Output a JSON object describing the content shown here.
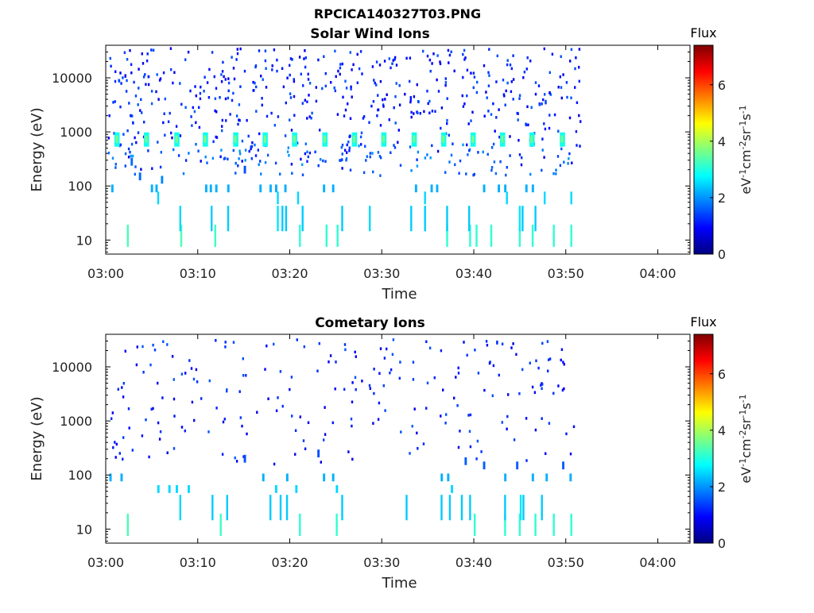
{
  "figure": {
    "title": "RPCICA140327T03.PNG"
  },
  "colors": {
    "colormap": [
      "#00007f",
      "#0000ff",
      "#007fff",
      "#00ffff",
      "#7fff7f",
      "#ffff00",
      "#ff7f00",
      "#ff0000",
      "#7f0000"
    ]
  },
  "chart_data": [
    {
      "type": "heatmap",
      "title": "Solar Wind Ions",
      "xlabel": "Time",
      "ylabel": "Energy (eV)",
      "x_ticks": [
        "03:00",
        "03:10",
        "03:20",
        "03:30",
        "03:40",
        "03:50",
        "04:00"
      ],
      "x_tick_minutes": [
        0,
        10,
        20,
        30,
        40,
        50,
        60
      ],
      "xlim_minutes": [
        0,
        63.5
      ],
      "y_scale": "log",
      "y_ticks": [
        "10",
        "100",
        "1000",
        "10000"
      ],
      "y_tick_values": [
        10,
        100,
        1000,
        10000
      ],
      "ylim": [
        5.5,
        40000
      ],
      "grid": false,
      "colorbar": {
        "title": "Flux",
        "label": "eV-1cm-2sr-1s-1",
        "label_parts": [
          [
            "eV",
            ""
          ],
          [
            "-1",
            "sup"
          ],
          [
            "cm",
            ""
          ],
          [
            "-2",
            "sup"
          ],
          [
            "sr",
            ""
          ],
          [
            "-1",
            "sup"
          ],
          [
            "s",
            ""
          ],
          [
            "-1",
            "sup"
          ]
        ],
        "ticks": [
          "0",
          "2",
          "4",
          "6"
        ],
        "tick_values": [
          0,
          2,
          4,
          6
        ],
        "range": [
          0,
          7.4
        ]
      },
      "bands": [
        {
          "minute": 1.2,
          "energy": 700,
          "flux": 2.9
        },
        {
          "minute": 4.4,
          "energy": 700,
          "flux": 2.9
        },
        {
          "minute": 7.7,
          "energy": 700,
          "flux": 2.9
        },
        {
          "minute": 10.8,
          "energy": 700,
          "flux": 2.9
        },
        {
          "minute": 14.1,
          "energy": 700,
          "flux": 2.9
        },
        {
          "minute": 17.3,
          "energy": 700,
          "flux": 2.9
        },
        {
          "minute": 20.5,
          "energy": 700,
          "flux": 2.9
        },
        {
          "minute": 23.8,
          "energy": 700,
          "flux": 2.9
        },
        {
          "minute": 27.0,
          "energy": 700,
          "flux": 2.9
        },
        {
          "minute": 30.2,
          "energy": 700,
          "flux": 2.9
        },
        {
          "minute": 33.5,
          "energy": 700,
          "flux": 2.9
        },
        {
          "minute": 36.7,
          "energy": 700,
          "flux": 2.9
        },
        {
          "minute": 39.9,
          "energy": 700,
          "flux": 2.9
        },
        {
          "minute": 43.1,
          "energy": 700,
          "flux": 2.9
        },
        {
          "minute": 46.3,
          "energy": 700,
          "flux": 2.9
        },
        {
          "minute": 49.6,
          "energy": 700,
          "flux": 2.9
        }
      ],
      "streaks": [
        {
          "minute": 2.3,
          "energy": 12,
          "flux": 3.3
        },
        {
          "minute": 8.1,
          "energy": 12,
          "flux": 3.3
        },
        {
          "minute": 11.8,
          "energy": 12,
          "flux": 3.2
        },
        {
          "minute": 21.0,
          "energy": 12,
          "flux": 3.1
        },
        {
          "minute": 23.9,
          "energy": 12,
          "flux": 3.1
        },
        {
          "minute": 25.1,
          "energy": 12,
          "flux": 3.1
        },
        {
          "minute": 37.0,
          "energy": 12,
          "flux": 3.1
        },
        {
          "minute": 39.5,
          "energy": 12,
          "flux": 3.1
        },
        {
          "minute": 40.2,
          "energy": 12,
          "flux": 3.1
        },
        {
          "minute": 41.8,
          "energy": 12,
          "flux": 3.1
        },
        {
          "minute": 44.9,
          "energy": 12,
          "flux": 3.1
        },
        {
          "minute": 46.3,
          "energy": 12,
          "flux": 3.1
        },
        {
          "minute": 48.6,
          "energy": 12,
          "flux": 3.1
        },
        {
          "minute": 50.5,
          "energy": 12,
          "flux": 3.1
        },
        {
          "minute": 8.0,
          "energy": 25,
          "flux": 2.5
        },
        {
          "minute": 11.4,
          "energy": 25,
          "flux": 2.4
        },
        {
          "minute": 13.2,
          "energy": 25,
          "flux": 2.4
        },
        {
          "minute": 18.6,
          "energy": 25,
          "flux": 2.6
        },
        {
          "minute": 19.1,
          "energy": 25,
          "flux": 2.4
        },
        {
          "minute": 19.5,
          "energy": 25,
          "flux": 2.4
        },
        {
          "minute": 21.3,
          "energy": 25,
          "flux": 2.4
        },
        {
          "minute": 25.6,
          "energy": 25,
          "flux": 2.4
        },
        {
          "minute": 28.6,
          "energy": 25,
          "flux": 2.5
        },
        {
          "minute": 33.1,
          "energy": 25,
          "flux": 2.4
        },
        {
          "minute": 34.6,
          "energy": 25,
          "flux": 2.4
        },
        {
          "minute": 37.0,
          "energy": 25,
          "flux": 2.4
        },
        {
          "minute": 39.4,
          "energy": 25,
          "flux": 2.4
        },
        {
          "minute": 44.9,
          "energy": 25,
          "flux": 2.6
        },
        {
          "minute": 45.2,
          "energy": 25,
          "flux": 2.4
        },
        {
          "minute": 46.6,
          "energy": 25,
          "flux": 2.4
        },
        {
          "minute": 5.6,
          "energy": 60,
          "flux": 2.5
        },
        {
          "minute": 18.6,
          "energy": 60,
          "flux": 2.5
        },
        {
          "minute": 20.8,
          "energy": 60,
          "flux": 2.5
        },
        {
          "minute": 34.6,
          "energy": 60,
          "flux": 2.5
        },
        {
          "minute": 43.5,
          "energy": 60,
          "flux": 2.5
        },
        {
          "minute": 47.6,
          "energy": 60,
          "flux": 2.5
        },
        {
          "minute": 50.5,
          "energy": 60,
          "flux": 2.5
        }
      ],
      "cells": [
        {
          "minute": 0.6,
          "energy": 90,
          "flux": 2.2
        },
        {
          "minute": 2.7,
          "energy": 280,
          "flux": 1.7
        },
        {
          "minute": 3.6,
          "energy": 150,
          "flux": 1.7
        },
        {
          "minute": 4.9,
          "energy": 90,
          "flux": 2.2
        },
        {
          "minute": 5.4,
          "energy": 90,
          "flux": 2.2
        },
        {
          "minute": 6.0,
          "energy": 130,
          "flux": 1.9
        },
        {
          "minute": 10.8,
          "energy": 90,
          "flux": 2.2
        },
        {
          "minute": 11.3,
          "energy": 90,
          "flux": 2.2
        },
        {
          "minute": 11.9,
          "energy": 90,
          "flux": 2.2
        },
        {
          "minute": 13.2,
          "energy": 90,
          "flux": 2.2
        },
        {
          "minute": 15.0,
          "energy": 200,
          "flux": 1.5
        },
        {
          "minute": 16.7,
          "energy": 90,
          "flux": 2.2
        },
        {
          "minute": 17.8,
          "energy": 90,
          "flux": 2.2
        },
        {
          "minute": 18.4,
          "energy": 90,
          "flux": 2.2
        },
        {
          "minute": 19.4,
          "energy": 90,
          "flux": 2.2
        },
        {
          "minute": 23.6,
          "energy": 90,
          "flux": 2.2
        },
        {
          "minute": 24.6,
          "energy": 90,
          "flux": 2.2
        },
        {
          "minute": 33.6,
          "energy": 90,
          "flux": 2.2
        },
        {
          "minute": 35.3,
          "energy": 90,
          "flux": 2.2
        },
        {
          "minute": 35.9,
          "energy": 90,
          "flux": 2.2
        },
        {
          "minute": 41.0,
          "energy": 90,
          "flux": 2.2
        },
        {
          "minute": 42.6,
          "energy": 90,
          "flux": 2.2
        },
        {
          "minute": 43.3,
          "energy": 90,
          "flux": 2.2
        },
        {
          "minute": 45.6,
          "energy": 90,
          "flux": 2.2
        },
        {
          "minute": 46.3,
          "energy": 90,
          "flux": 2.2
        }
      ],
      "scatter": {
        "seed": 11,
        "count": 520,
        "minute_range": [
          0.2,
          51.5
        ],
        "energy_range": [
          200,
          35000
        ],
        "flux_range": [
          0.7,
          1.6
        ],
        "extra": {
          "count": 120,
          "energy_range": [
            150,
            600
          ],
          "flux_range": [
            1.3,
            2.1
          ]
        }
      }
    },
    {
      "type": "heatmap",
      "title": "Cometary Ions",
      "xlabel": "Time",
      "ylabel": "Energy (eV)",
      "x_ticks": [
        "03:00",
        "03:10",
        "03:20",
        "03:30",
        "03:40",
        "03:50",
        "04:00"
      ],
      "x_tick_minutes": [
        0,
        10,
        20,
        30,
        40,
        50,
        60
      ],
      "xlim_minutes": [
        0,
        63.5
      ],
      "y_scale": "log",
      "y_ticks": [
        "10",
        "100",
        "1000",
        "10000"
      ],
      "y_tick_values": [
        10,
        100,
        1000,
        10000
      ],
      "ylim": [
        5.5,
        40000
      ],
      "grid": false,
      "colorbar": {
        "title": "Flux",
        "label": "eV-1cm-2sr-1s-1",
        "label_parts": [
          [
            "eV",
            ""
          ],
          [
            "-1",
            "sup"
          ],
          [
            "cm",
            ""
          ],
          [
            "-2",
            "sup"
          ],
          [
            "sr",
            ""
          ],
          [
            "-1",
            "sup"
          ],
          [
            "s",
            ""
          ],
          [
            "-1",
            "sup"
          ]
        ],
        "ticks": [
          "0",
          "2",
          "4",
          "6"
        ],
        "tick_values": [
          0,
          2,
          4,
          6
        ],
        "range": [
          0,
          7.4
        ]
      },
      "bands": [],
      "streaks": [
        {
          "minute": 2.3,
          "energy": 12,
          "flux": 3.3
        },
        {
          "minute": 12.4,
          "energy": 12,
          "flux": 3.2
        },
        {
          "minute": 21.0,
          "energy": 12,
          "flux": 3.1
        },
        {
          "minute": 25.0,
          "energy": 12,
          "flux": 3.1
        },
        {
          "minute": 40.0,
          "energy": 12,
          "flux": 3.1
        },
        {
          "minute": 43.3,
          "energy": 12,
          "flux": 3.1
        },
        {
          "minute": 44.9,
          "energy": 12,
          "flux": 3.1
        },
        {
          "minute": 46.6,
          "energy": 12,
          "flux": 3.1
        },
        {
          "minute": 48.6,
          "energy": 12,
          "flux": 3.1
        },
        {
          "minute": 50.5,
          "energy": 12,
          "flux": 3.1
        },
        {
          "minute": 8.0,
          "energy": 25,
          "flux": 2.5
        },
        {
          "minute": 11.5,
          "energy": 25,
          "flux": 2.4
        },
        {
          "minute": 13.1,
          "energy": 25,
          "flux": 2.4
        },
        {
          "minute": 17.8,
          "energy": 25,
          "flux": 2.4
        },
        {
          "minute": 18.9,
          "energy": 25,
          "flux": 2.4
        },
        {
          "minute": 19.6,
          "energy": 25,
          "flux": 2.4
        },
        {
          "minute": 25.6,
          "energy": 25,
          "flux": 2.4
        },
        {
          "minute": 32.6,
          "energy": 25,
          "flux": 2.4
        },
        {
          "minute": 36.4,
          "energy": 25,
          "flux": 2.4
        },
        {
          "minute": 37.3,
          "energy": 25,
          "flux": 2.4
        },
        {
          "minute": 38.6,
          "energy": 25,
          "flux": 2.4
        },
        {
          "minute": 39.5,
          "energy": 25,
          "flux": 2.4
        },
        {
          "minute": 43.3,
          "energy": 25,
          "flux": 2.4
        },
        {
          "minute": 45.0,
          "energy": 25,
          "flux": 2.6
        },
        {
          "minute": 45.3,
          "energy": 25,
          "flux": 2.4
        },
        {
          "minute": 47.3,
          "energy": 25,
          "flux": 2.4
        }
      ],
      "cells": [
        {
          "minute": 0.4,
          "energy": 90,
          "flux": 2.2
        },
        {
          "minute": 1.6,
          "energy": 90,
          "flux": 2.2
        },
        {
          "minute": 5.6,
          "energy": 55,
          "flux": 2.5
        },
        {
          "minute": 6.8,
          "energy": 55,
          "flux": 2.5
        },
        {
          "minute": 7.6,
          "energy": 55,
          "flux": 2.5
        },
        {
          "minute": 8.9,
          "energy": 55,
          "flux": 2.5
        },
        {
          "minute": 15.0,
          "energy": 200,
          "flux": 1.5
        },
        {
          "minute": 17.0,
          "energy": 90,
          "flux": 2.2
        },
        {
          "minute": 18.4,
          "energy": 55,
          "flux": 2.5
        },
        {
          "minute": 19.6,
          "energy": 90,
          "flux": 2.2
        },
        {
          "minute": 20.6,
          "energy": 55,
          "flux": 2.5
        },
        {
          "minute": 23.0,
          "energy": 250,
          "flux": 1.5
        },
        {
          "minute": 23.6,
          "energy": 90,
          "flux": 2.2
        },
        {
          "minute": 24.6,
          "energy": 90,
          "flux": 2.2
        },
        {
          "minute": 25.0,
          "energy": 55,
          "flux": 2.5
        },
        {
          "minute": 36.4,
          "energy": 90,
          "flux": 2.2
        },
        {
          "minute": 37.1,
          "energy": 90,
          "flux": 2.2
        },
        {
          "minute": 37.5,
          "energy": 55,
          "flux": 2.5
        },
        {
          "minute": 39.0,
          "energy": 180,
          "flux": 1.6
        },
        {
          "minute": 41.0,
          "energy": 150,
          "flux": 1.6
        },
        {
          "minute": 43.3,
          "energy": 90,
          "flux": 2.2
        },
        {
          "minute": 44.6,
          "energy": 150,
          "flux": 1.6
        },
        {
          "minute": 46.3,
          "energy": 90,
          "flux": 2.2
        },
        {
          "minute": 47.8,
          "energy": 90,
          "flux": 2.2
        },
        {
          "minute": 49.6,
          "energy": 150,
          "flux": 1.6
        },
        {
          "minute": 50.4,
          "energy": 90,
          "flux": 2.2
        }
      ],
      "scatter": {
        "seed": 29,
        "count": 230,
        "minute_range": [
          0.2,
          51.5
        ],
        "energy_range": [
          150,
          35000
        ],
        "flux_range": [
          0.7,
          1.6
        ],
        "extra": {
          "count": 0,
          "energy_range": [
            150,
            600
          ],
          "flux_range": [
            1.3,
            2.1
          ]
        }
      }
    }
  ]
}
